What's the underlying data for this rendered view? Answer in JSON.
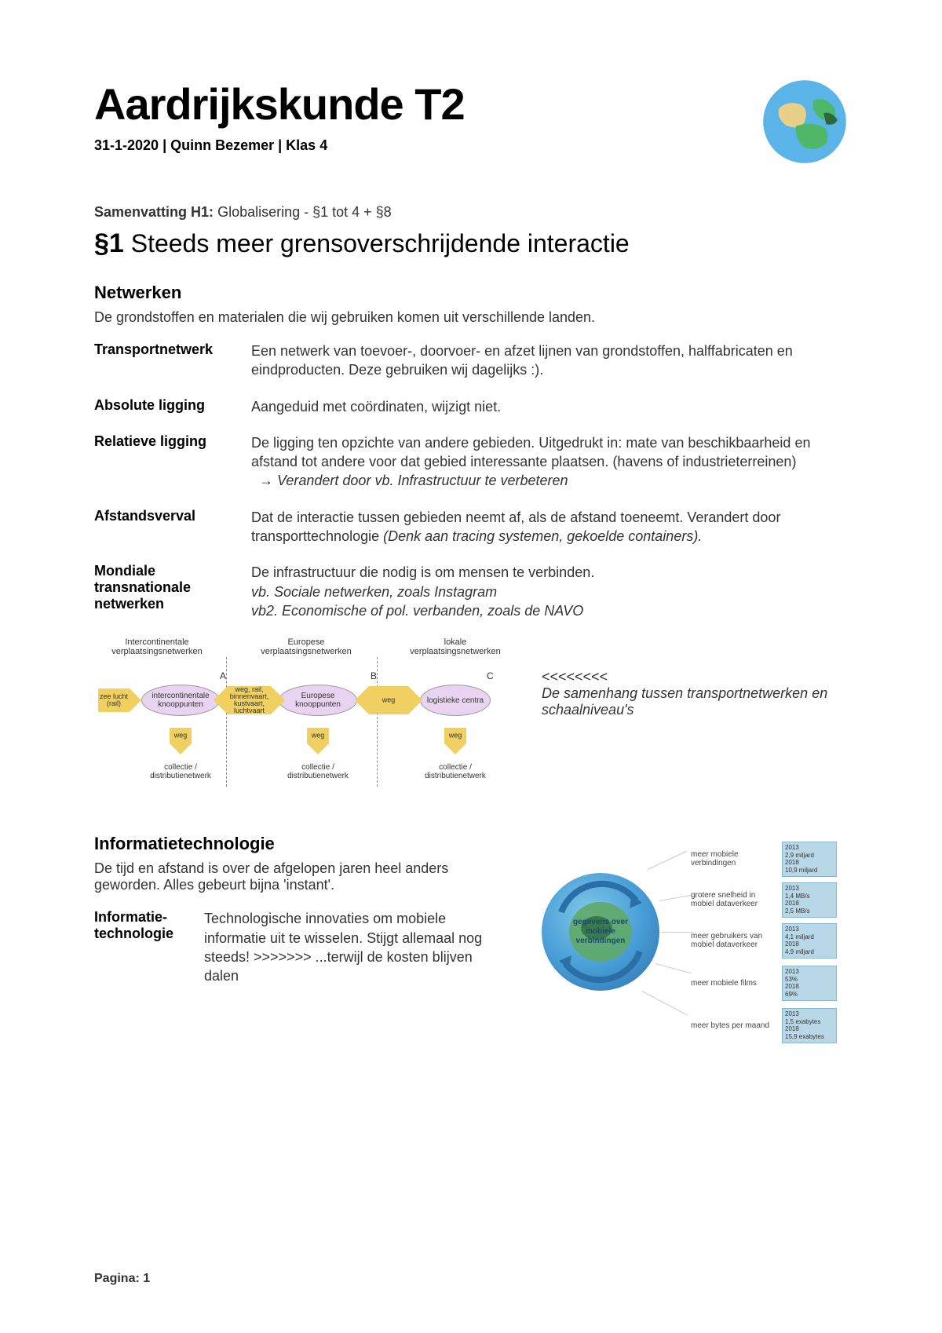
{
  "header": {
    "title": "Aardrijkskunde T2",
    "subtitle": "31-1-2020 | Quinn Bezemer | Klas 4"
  },
  "summary": {
    "label": "Samenvatting H1:",
    "text": "Globalisering -  §1 tot 4 + §8"
  },
  "section1": {
    "num": "§1",
    "title": "Steeds meer grensoverschrijdende interactie"
  },
  "netwerken": {
    "heading": "Netwerken",
    "intro": "De grondstoffen en materialen die wij gebruiken komen uit verschillende landen.",
    "defs": [
      {
        "term": "Transportnetwerk",
        "body": "Een netwerk van toevoer-, doorvoer- en afzet lijnen van grondstoffen, halffabricaten en eindproducten. Deze gebruiken wij dagelijks :)."
      },
      {
        "term": "Absolute ligging",
        "body": "Aangeduid met coördinaten, wijzigt niet."
      },
      {
        "term": "Relatieve ligging",
        "body": "De ligging ten opzichte van andere gebieden. Uitgedrukt in: mate van beschikbaarheid en afstand tot andere voor dat gebied interessante plaatsen. (havens of industrieterreinen)",
        "extra_arrow": "→",
        "extra": "Verandert door vb. Infrastructuur te verbeteren"
      },
      {
        "term": "Afstandsverval",
        "body": "Dat de interactie tussen gebieden neemt af, als de afstand toeneemt. Verandert door transporttechnologie ",
        "italic_tail": "(Denk aan tracing systemen, gekoelde containers)."
      },
      {
        "term": "Mondiale transnationale netwerken",
        "body": "De infrastructuur die nodig is om mensen te verbinden.",
        "italic_line1": "vb. Sociale netwerken, zoals Instagram",
        "italic_line2": "vb2. Economische of pol. verbanden, zoals de NAVO"
      }
    ]
  },
  "diagram1": {
    "headers": [
      "Intercontinentale verplaatsingsnetwerken",
      "Europese verplaatsingsnetwerken",
      "lokale verplaatsingsnetwerken"
    ],
    "letters": [
      "A",
      "B",
      "C"
    ],
    "nodes": [
      "intercontinentale knooppunten",
      "Europese knooppunten",
      "logistieke centra"
    ],
    "left_arrow": "zee lucht (rail)",
    "mid_arrows": [
      "weg, rail, binnenvaart, kustvaart, luchtvaart",
      "weg"
    ],
    "down_label": "weg",
    "bottom_labels": [
      "collectie / distributienetwerk",
      "collectie / distributienetwerk",
      "collectie / distributienetwerk"
    ],
    "caption_arrows": "<<<<<<<<",
    "caption": "De samenhang tussen transportnetwerken en schaalniveau's",
    "colors": {
      "arrow": "#f0d060",
      "node": "#e8d4f0"
    }
  },
  "infotech": {
    "heading": "Informatietechnologie",
    "intro": "De tijd en afstand is over de afgelopen jaren heel anders geworden. Alles gebeurt bijna 'instant'.",
    "def_term": "Informatie-technologie",
    "def_body": "Technologische innovaties om mobiele informatie uit te wisselen. Stijgt allemaal nog steeds! >>>>>>> ...terwijl de kosten blijven dalen",
    "globe_text": "gegevens over mobiele verbindingen",
    "items": [
      {
        "label": "meer mobiele verbindingen",
        "box": "2013\n2,9 miljard\n2018\n10,9 miljard"
      },
      {
        "label": "grotere snelheid in mobiel dataverkeer",
        "box": "2013\n1,4 MB/s\n2018\n2,5 MB/s"
      },
      {
        "label": "meer gebruikers van mobiel dataverkeer",
        "box": "2013\n4,1 miljard\n2018\n4,9 miljard"
      },
      {
        "label": "meer mobiele films",
        "box": "2013\n53%\n2018\n69%"
      },
      {
        "label": "meer bytes per maand",
        "box": "2013\n1,5 exabytes\n2018\n15,9 exabytes"
      }
    ]
  },
  "footer": "Pagina: 1"
}
